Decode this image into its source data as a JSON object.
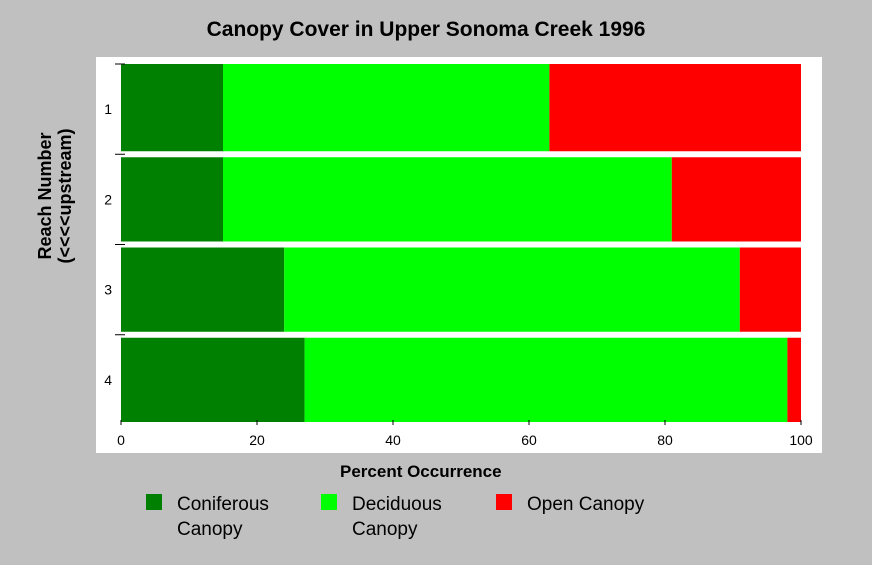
{
  "chart_data": {
    "type": "bar",
    "orientation": "horizontal",
    "stacked": true,
    "title": "Canopy Cover in Upper Sonoma Creek 1996",
    "xlabel": "Percent Occurrence",
    "ylabel_line1": "Reach Number",
    "ylabel_line2": "(<<<<upstream)",
    "xlim": [
      0,
      100
    ],
    "xticks": [
      "0",
      "20",
      "40",
      "60",
      "80",
      "100"
    ],
    "categories": [
      "1",
      "2",
      "3",
      "4"
    ],
    "series": [
      {
        "name": "Coniferous Canopy",
        "color": "#008000",
        "values": [
          15,
          15,
          24,
          27
        ]
      },
      {
        "name": "Deciduous Canopy",
        "color": "#00ff00",
        "values": [
          48,
          66,
          67,
          71
        ]
      },
      {
        "name": "Open Canopy",
        "color": "#ff0000",
        "values": [
          37,
          19,
          9,
          2
        ]
      }
    ],
    "legend_position": "bottom"
  }
}
